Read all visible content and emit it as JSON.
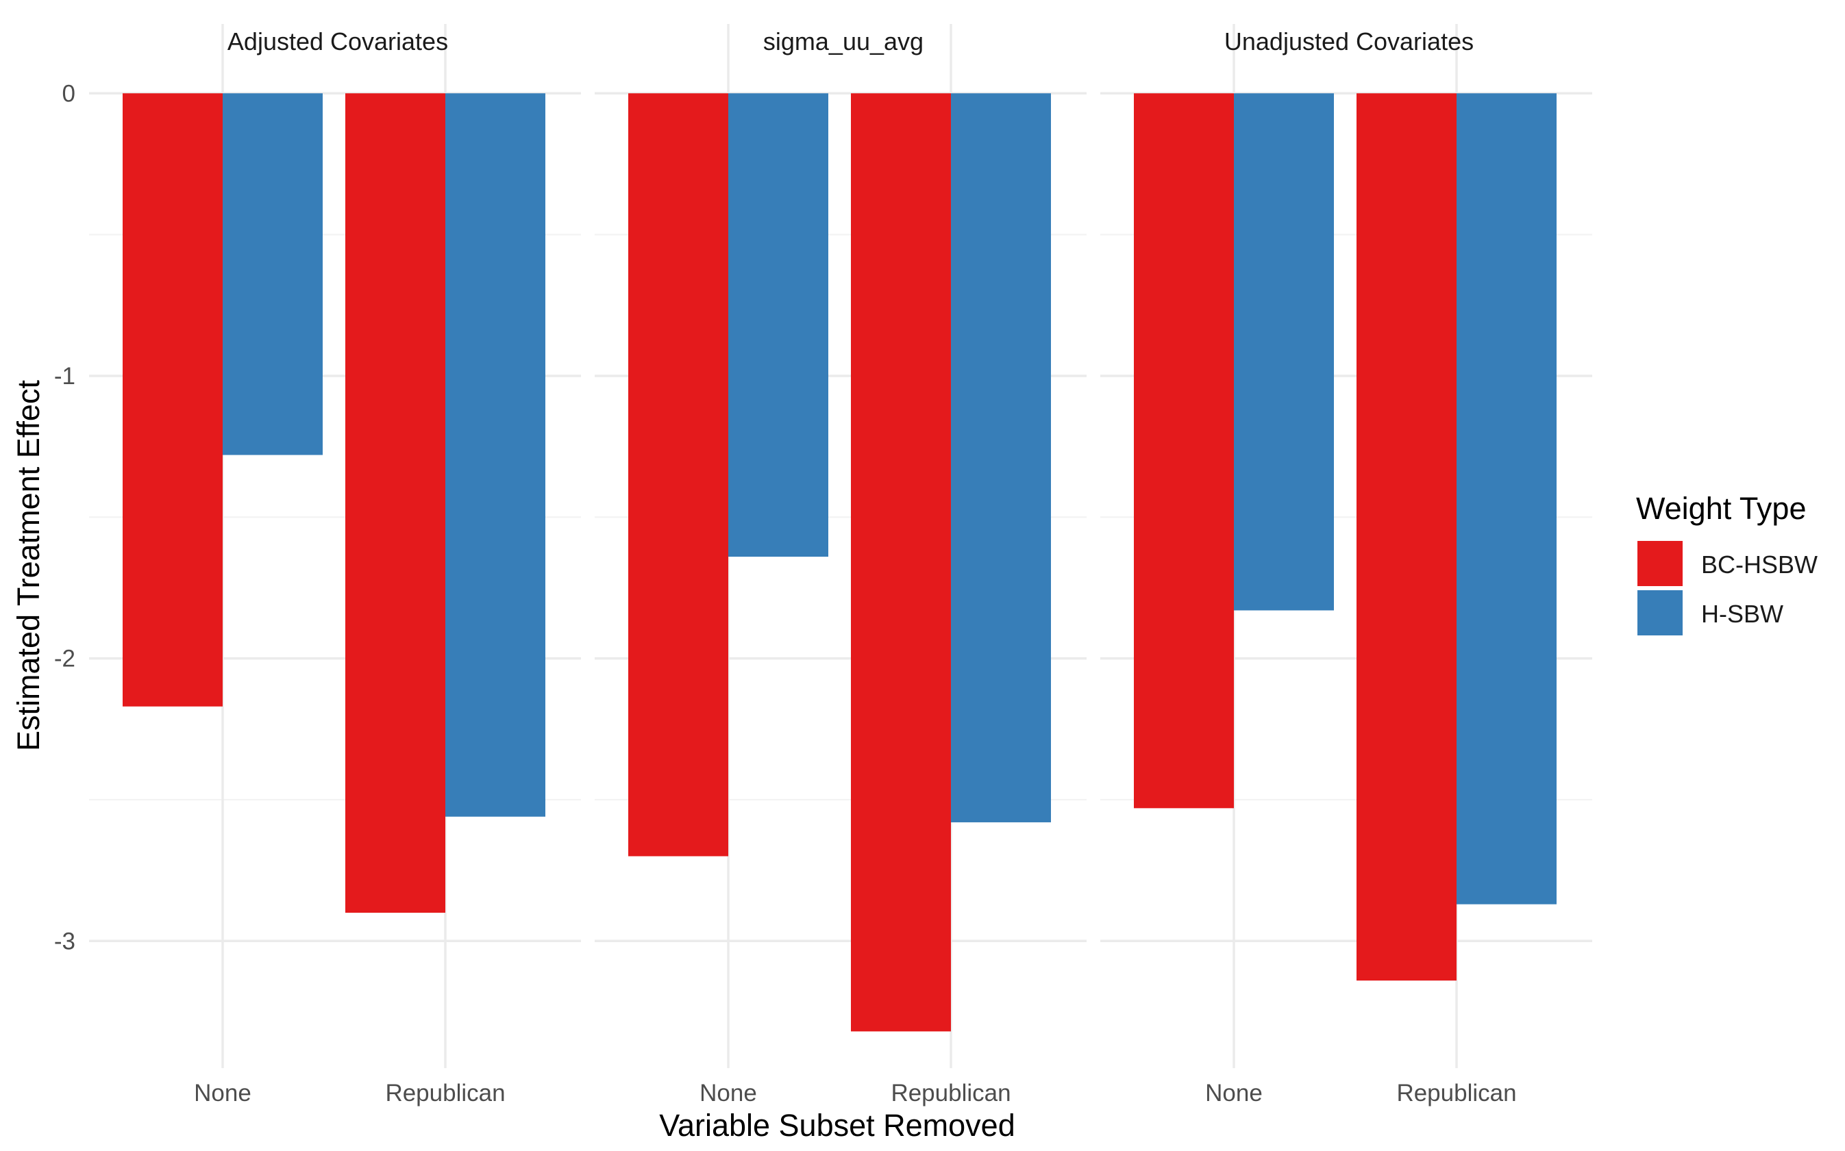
{
  "chart_data": {
    "type": "bar",
    "layout": "faceted",
    "xlabel": "Variable Subset Removed",
    "ylabel": "Estimated Treatment Effect",
    "ylim": [
      -3.45,
      0.1
    ],
    "yticks": [
      0,
      -1,
      -2,
      -3
    ],
    "categories": [
      "None",
      "Republican"
    ],
    "legend": {
      "title": "Weight Type",
      "placement": "right",
      "entries": [
        "BC-HSBW",
        "H-SBW"
      ]
    },
    "colors": {
      "BC-HSBW": "#E41A1C",
      "H-SBW": "#377EB8"
    },
    "grid": true,
    "facets": [
      {
        "label": "Adjusted Covariates",
        "series": [
          {
            "name": "BC-HSBW",
            "values": [
              -2.17,
              -2.9
            ]
          },
          {
            "name": "H-SBW",
            "values": [
              -1.28,
              -2.56
            ]
          }
        ]
      },
      {
        "label": "sigma_uu_avg",
        "series": [
          {
            "name": "BC-HSBW",
            "values": [
              -2.7,
              -3.32
            ]
          },
          {
            "name": "H-SBW",
            "values": [
              -1.64,
              -2.58
            ]
          }
        ]
      },
      {
        "label": "Unadjusted Covariates",
        "series": [
          {
            "name": "BC-HSBW",
            "values": [
              -2.53,
              -3.14
            ]
          },
          {
            "name": "H-SBW",
            "values": [
              -1.83,
              -2.87
            ]
          }
        ]
      }
    ]
  }
}
